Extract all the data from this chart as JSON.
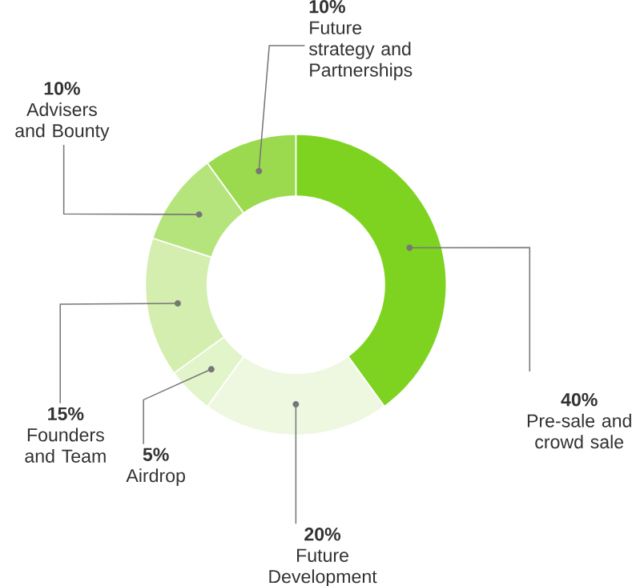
{
  "chart_data": {
    "type": "donut",
    "categories": [
      "Pre-sale and crowd sale",
      "Future Development",
      "Airdrop",
      "Founders and Team",
      "Advisers and Bounty",
      "Future strategy and Partnerships"
    ],
    "values": [
      40,
      20,
      5,
      15,
      10,
      10
    ],
    "value_labels": [
      "40%",
      "20%",
      "5%",
      "15%",
      "10%",
      "10%"
    ],
    "colors": [
      "#7ed321",
      "#eef8e1",
      "#e2f4ca",
      "#d3eeae",
      "#b6e47c",
      "#9bd94e"
    ]
  }
}
